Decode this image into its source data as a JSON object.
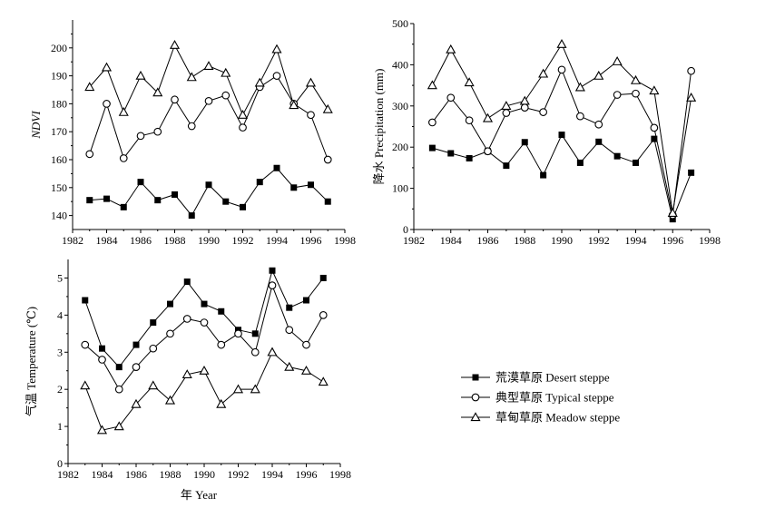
{
  "chart_data": [
    {
      "type": "line",
      "ylabel": "NDVI",
      "xlim": [
        1982,
        1998
      ],
      "ylim": [
        135,
        210
      ],
      "xticks": [
        "1982",
        "1984",
        "1986",
        "1988",
        "1990",
        "1992",
        "1994",
        "1996",
        "1998"
      ],
      "yticks": [
        "140",
        "150",
        "160",
        "170",
        "180",
        "190",
        "200"
      ],
      "x": [
        1983,
        1984,
        1985,
        1986,
        1987,
        1988,
        1989,
        1990,
        1991,
        1992,
        1993,
        1994,
        1995,
        1996,
        1997
      ],
      "series": [
        {
          "name": "Desert steppe",
          "marker": "square-filled",
          "values": [
            145.5,
            146,
            143,
            152,
            145.5,
            147.5,
            140,
            151,
            145,
            143,
            152,
            157,
            150,
            151,
            145
          ]
        },
        {
          "name": "Typical steppe",
          "marker": "circle-open",
          "values": [
            162,
            180,
            160.5,
            168.5,
            170,
            181.5,
            172,
            181,
            183,
            171.5,
            186,
            190,
            180,
            176,
            160
          ]
        },
        {
          "name": "Meadow steppe",
          "marker": "triangle-open",
          "values": [
            186,
            193,
            177,
            190,
            184,
            201,
            189.5,
            193.5,
            191,
            176,
            187.5,
            199.5,
            179.5,
            187.5,
            178
          ]
        }
      ]
    },
    {
      "type": "line",
      "ylabel": "降水 Precipitation (mm)",
      "xlim": [
        1982,
        1998
      ],
      "ylim": [
        0,
        500
      ],
      "xticks": [
        "1982",
        "1984",
        "1986",
        "1988",
        "1990",
        "1992",
        "1994",
        "1996",
        "1998"
      ],
      "yticks": [
        "0",
        "100",
        "200",
        "300",
        "400",
        "500"
      ],
      "x": [
        1983,
        1984,
        1985,
        1986,
        1987,
        1988,
        1989,
        1990,
        1991,
        1992,
        1993,
        1994,
        1995,
        1996,
        1997
      ],
      "series": [
        {
          "name": "Desert steppe",
          "marker": "square-filled",
          "values": [
            198,
            185,
            173,
            190,
            155,
            212,
            132,
            230,
            162,
            213,
            178,
            162,
            220,
            25,
            138
          ]
        },
        {
          "name": "Typical steppe",
          "marker": "circle-open",
          "values": [
            260,
            320,
            265,
            190,
            283,
            296,
            285,
            388,
            275,
            255,
            327,
            330,
            247,
            35,
            385
          ]
        },
        {
          "name": "Meadow steppe",
          "marker": "triangle-open",
          "values": [
            350,
            437,
            357,
            270,
            300,
            312,
            378,
            450,
            345,
            373,
            408,
            362,
            337,
            40,
            320
          ]
        }
      ]
    },
    {
      "type": "line",
      "ylabel": "气温 Temperature (℃)",
      "xlabel": "年 Year",
      "xlim": [
        1982,
        1998
      ],
      "ylim": [
        0,
        5.5
      ],
      "xticks": [
        "1982",
        "1984",
        "1986",
        "1988",
        "1990",
        "1992",
        "1994",
        "1996",
        "1998"
      ],
      "yticks": [
        "0",
        "1",
        "2",
        "3",
        "4",
        "5"
      ],
      "x": [
        1983,
        1984,
        1985,
        1986,
        1987,
        1988,
        1989,
        1990,
        1991,
        1992,
        1993,
        1994,
        1995,
        1996,
        1997
      ],
      "series": [
        {
          "name": "Desert steppe",
          "marker": "square-filled",
          "values": [
            4.4,
            3.1,
            2.6,
            3.2,
            3.8,
            4.3,
            4.9,
            4.3,
            4.1,
            3.6,
            3.5,
            5.2,
            4.2,
            4.4,
            5.0
          ]
        },
        {
          "name": "Typical steppe",
          "marker": "circle-open",
          "values": [
            3.2,
            2.8,
            2.0,
            2.6,
            3.1,
            3.5,
            3.9,
            3.8,
            3.2,
            3.5,
            3.0,
            4.8,
            3.6,
            3.2,
            4.0
          ]
        },
        {
          "name": "Meadow steppe",
          "marker": "triangle-open",
          "values": [
            2.1,
            0.9,
            1.0,
            1.6,
            2.1,
            1.7,
            2.4,
            2.5,
            1.6,
            2.0,
            2.0,
            3.0,
            2.6,
            2.5,
            2.2
          ]
        }
      ]
    }
  ],
  "legend": {
    "placement": "bottom-right",
    "items": [
      {
        "label": "荒漠草原 Desert steppe",
        "marker": "square-filled"
      },
      {
        "label": "典型草原 Typical steppe",
        "marker": "circle-open"
      },
      {
        "label": "草甸草原 Meadow steppe",
        "marker": "triangle-open"
      }
    ]
  }
}
